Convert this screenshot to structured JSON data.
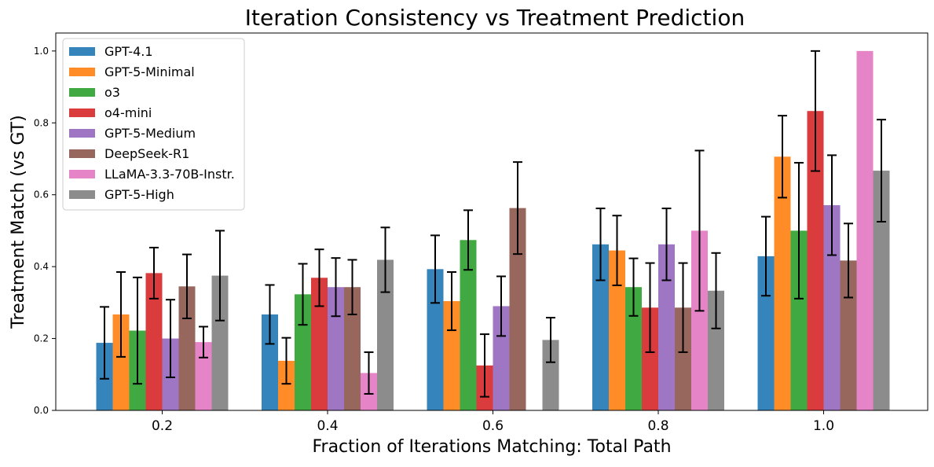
{
  "chart_data": {
    "type": "bar",
    "title": "Iteration Consistency vs Treatment Prediction",
    "xlabel": "Fraction of Iterations Matching: Total Path",
    "ylabel": "Treatment Match (vs GT)",
    "categories": [
      "0.2",
      "0.4",
      "0.6",
      "0.8",
      "1.0"
    ],
    "ylim": [
      0,
      1.05
    ],
    "yticks": [
      "0.0",
      "0.2",
      "0.4",
      "0.6",
      "0.8",
      "1.0"
    ],
    "legend_position": "top-left",
    "series": [
      {
        "name": "GPT-4.1",
        "color": "#1f77b4",
        "values": [
          0.188,
          0.267,
          0.393,
          0.462,
          0.429
        ],
        "err": [
          0.1,
          0.082,
          0.094,
          0.1,
          0.11
        ]
      },
      {
        "name": "GPT-5-Minimal",
        "color": "#ff7f0e",
        "values": [
          0.267,
          0.138,
          0.304,
          0.445,
          0.706
        ],
        "err": [
          0.118,
          0.064,
          0.081,
          0.097,
          0.114
        ]
      },
      {
        "name": "o3",
        "color": "#2ca02c",
        "values": [
          0.222,
          0.323,
          0.474,
          0.343,
          0.5
        ],
        "err": [
          0.148,
          0.085,
          0.083,
          0.08,
          0.189
        ]
      },
      {
        "name": "o4-mini",
        "color": "#d62728",
        "values": [
          0.382,
          0.369,
          0.125,
          0.286,
          0.833
        ],
        "err": [
          0.071,
          0.079,
          0.087,
          0.124,
          0.167
        ]
      },
      {
        "name": "GPT-5-Medium",
        "color": "#9467bd",
        "values": [
          0.2,
          0.343,
          0.29,
          0.462,
          0.571
        ],
        "err": [
          0.108,
          0.081,
          0.083,
          0.1,
          0.139
        ]
      },
      {
        "name": "DeepSeek-R1",
        "color": "#8c564b",
        "values": [
          0.345,
          0.343,
          0.563,
          0.286,
          0.417
        ],
        "err": [
          0.089,
          0.076,
          0.128,
          0.124,
          0.103
        ]
      },
      {
        "name": "LLaMA-3.3-70B-Instr.",
        "color": "#e377c2",
        "values": [
          0.19,
          0.104,
          0.0,
          0.5,
          1.0
        ],
        "err": [
          0.043,
          0.058,
          0.0,
          0.223,
          0.0
        ]
      },
      {
        "name": "GPT-5-High",
        "color": "#7f7f7f",
        "values": [
          0.375,
          0.419,
          0.196,
          0.333,
          0.667
        ],
        "err": [
          0.125,
          0.09,
          0.062,
          0.105,
          0.142
        ]
      }
    ]
  }
}
